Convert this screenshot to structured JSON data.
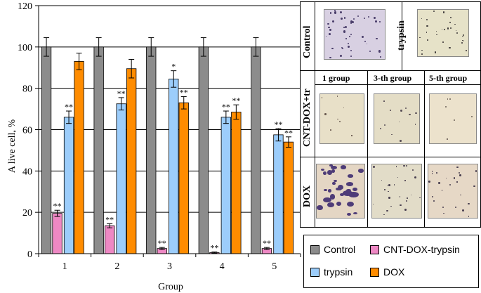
{
  "chart_data": {
    "type": "bar",
    "xlabel": "Group",
    "ylabel": "A live cell, %",
    "ylim": [
      0,
      120
    ],
    "yticks": [
      0,
      20,
      40,
      60,
      80,
      100,
      120
    ],
    "categories": [
      "1",
      "2",
      "3",
      "4",
      "5"
    ],
    "grid": true,
    "series": [
      {
        "name": "Control",
        "color": "#8c8c8c",
        "values": [
          100,
          100,
          100,
          100,
          100
        ],
        "errors": [
          4.5,
          4.5,
          4.5,
          4.5,
          4.5
        ],
        "sig": [
          "",
          "",
          "",
          "",
          ""
        ]
      },
      {
        "name": "CNT-DOX-trypsin",
        "color": "#ee88c4",
        "values": [
          19.5,
          13.5,
          2.5,
          0.5,
          2.5
        ],
        "errors": [
          1.5,
          1.0,
          0.5,
          0.3,
          0.5
        ],
        "sig": [
          "**",
          "**",
          "**",
          "**",
          "**"
        ]
      },
      {
        "name": "trypsin",
        "color": "#9ccdfb",
        "values": [
          66,
          72.5,
          84.5,
          66,
          57.5
        ],
        "errors": [
          3.0,
          3.0,
          4.0,
          3.0,
          3.0
        ],
        "sig": [
          "**",
          "**",
          "*",
          "**",
          "**"
        ]
      },
      {
        "name": "DOX",
        "color": "#ff8c00",
        "values": [
          93,
          89.5,
          73,
          68.5,
          54
        ],
        "errors": [
          4.0,
          4.5,
          3.0,
          3.5,
          2.5
        ],
        "sig": [
          "",
          "",
          "**",
          "**",
          "**"
        ]
      }
    ],
    "legend": {
      "placement": "bottom-right",
      "items": [
        "Control",
        "CNT-DOX-trypsin",
        "trypsin",
        "DOX"
      ]
    }
  },
  "panel": {
    "row_labels": {
      "control": "Control",
      "cnt": "CNT-DOX+tr",
      "dox": "DOX"
    },
    "trypsin_label": "trypsin",
    "col_headers": [
      "1 group",
      "3-th group",
      "5-th group"
    ]
  }
}
